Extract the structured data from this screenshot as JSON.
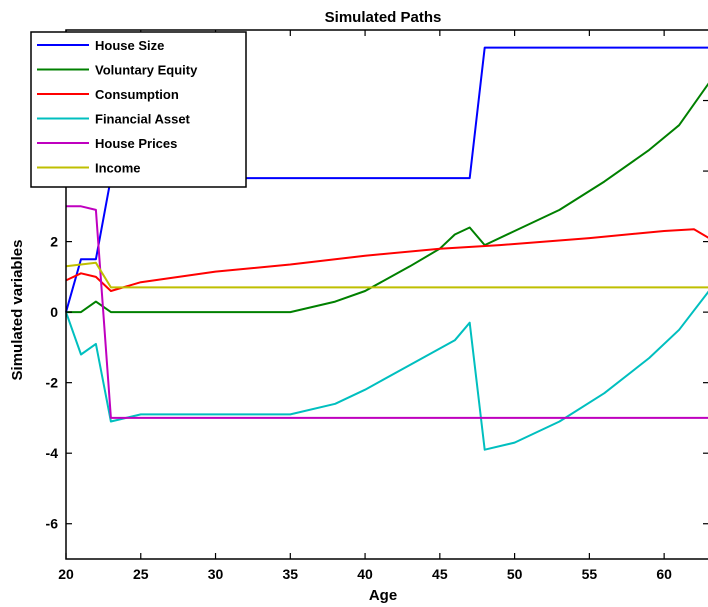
{
  "chart_data": {
    "type": "line",
    "title": "Simulated Paths",
    "xlabel": "Age",
    "ylabel": "Simulated variables",
    "xlim": [
      20,
      63
    ],
    "ylim": [
      -7,
      8
    ],
    "xticks": [
      20,
      25,
      30,
      35,
      40,
      45,
      50,
      55,
      60
    ],
    "yticks": [
      -6,
      -4,
      -2,
      0,
      2,
      4,
      6
    ],
    "grid": false,
    "legend_position": "top-left",
    "series": [
      {
        "name": "House Size",
        "color": "#0000ff",
        "x": [
          20,
          21,
          22,
          23,
          47,
          48,
          63
        ],
        "y": [
          0,
          1.5,
          1.5,
          3.8,
          3.8,
          7.5,
          7.5
        ]
      },
      {
        "name": "Voluntary Equity",
        "color": "#008000",
        "x": [
          20,
          21,
          22,
          23,
          25,
          30,
          35,
          38,
          40,
          43,
          45,
          46,
          47,
          48,
          50,
          53,
          56,
          59,
          61,
          63
        ],
        "y": [
          0,
          0,
          0.3,
          0,
          0,
          0,
          0,
          0.3,
          0.6,
          1.3,
          1.8,
          2.2,
          2.4,
          1.9,
          2.3,
          2.9,
          3.7,
          4.6,
          5.3,
          6.5
        ]
      },
      {
        "name": "Consumption",
        "color": "#ff0000",
        "x": [
          20,
          21,
          22,
          23,
          25,
          30,
          35,
          40,
          45,
          49,
          55,
          60,
          62,
          63
        ],
        "y": [
          0.9,
          1.1,
          1.0,
          0.6,
          0.85,
          1.15,
          1.35,
          1.6,
          1.8,
          1.9,
          2.1,
          2.3,
          2.35,
          2.1
        ]
      },
      {
        "name": "Financial Asset",
        "color": "#00bfbf",
        "x": [
          20,
          21,
          22,
          23,
          25,
          30,
          35,
          38,
          40,
          43,
          46,
          47,
          48,
          50,
          53,
          56,
          59,
          61,
          63
        ],
        "y": [
          0,
          -1.2,
          -0.9,
          -3.1,
          -2.9,
          -2.9,
          -2.9,
          -2.6,
          -2.2,
          -1.5,
          -0.8,
          -0.3,
          -3.9,
          -3.7,
          -3.1,
          -2.3,
          -1.3,
          -0.5,
          0.6
        ]
      },
      {
        "name": "House Prices",
        "color": "#bf00bf",
        "x": [
          20,
          21,
          22,
          23,
          63
        ],
        "y": [
          3.0,
          3.0,
          2.9,
          -3.0,
          -3.0
        ]
      },
      {
        "name": "Income",
        "color": "#bfbf00",
        "x": [
          20,
          21,
          22,
          23,
          63
        ],
        "y": [
          1.3,
          1.35,
          1.4,
          0.7,
          0.7
        ]
      }
    ]
  }
}
